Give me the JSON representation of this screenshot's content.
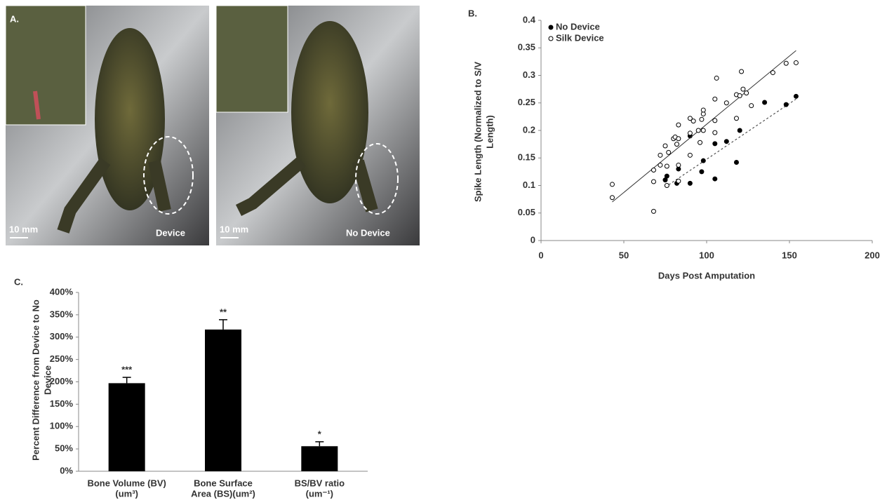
{
  "photo_panel": {
    "panel_label": "A.",
    "scale_left": "10 mm",
    "label_left": "Device",
    "scale_right": "10 mm",
    "label_right": "No Device"
  },
  "chart_data": [
    {
      "type": "scatter",
      "panel_label": "B.",
      "xlabel": "Days Post Amputation",
      "ylabel": [
        "Spike Length (Normalized to S/V",
        "Length)"
      ],
      "xlim": [
        0,
        200
      ],
      "xticks": [
        0,
        50,
        100,
        150,
        200
      ],
      "ylim": [
        0,
        0.4
      ],
      "yticks": [
        0,
        0.05,
        0.1,
        0.15,
        0.2,
        0.25,
        0.3,
        0.35,
        0.4
      ],
      "legend": "top-left",
      "series": [
        {
          "name": "No Device",
          "color": "#000000",
          "dash": true,
          "x": [
            75,
            76,
            82,
            83,
            90,
            90,
            97,
            98,
            105,
            105,
            112,
            118,
            120,
            135,
            148,
            154
          ],
          "values": [
            0.11,
            0.117,
            0.104,
            0.13,
            0.104,
            0.19,
            0.125,
            0.145,
            0.176,
            0.112,
            0.18,
            0.142,
            0.2,
            0.251,
            0.247,
            0.262
          ],
          "trend_x": [
            75,
            154
          ],
          "trend_y": [
            0.097,
            0.257
          ]
        },
        {
          "name": "Silk Device",
          "color": "#ffffff",
          "dash": false,
          "x": [
            43,
            43,
            68,
            68,
            68,
            72,
            72,
            75,
            76,
            76,
            77,
            80,
            81,
            82,
            83,
            83,
            83,
            83,
            90,
            90,
            90,
            92,
            95,
            96,
            97,
            98,
            98,
            98,
            105,
            105,
            105,
            106,
            112,
            118,
            118,
            120,
            121,
            122,
            124,
            127,
            140,
            148,
            154
          ],
          "values": [
            0.102,
            0.078,
            0.053,
            0.107,
            0.128,
            0.137,
            0.155,
            0.172,
            0.135,
            0.1,
            0.16,
            0.185,
            0.188,
            0.175,
            0.21,
            0.185,
            0.137,
            0.108,
            0.195,
            0.155,
            0.222,
            0.217,
            0.2,
            0.178,
            0.22,
            0.23,
            0.237,
            0.2,
            0.257,
            0.196,
            0.218,
            0.295,
            0.25,
            0.265,
            0.222,
            0.263,
            0.307,
            0.275,
            0.268,
            0.245,
            0.305,
            0.322,
            0.323
          ],
          "trend_x": [
            43,
            154
          ],
          "trend_y": [
            0.07,
            0.345
          ]
        }
      ]
    },
    {
      "type": "bar",
      "panel_label": "C.",
      "ylabel": [
        "Percent Difference from  Device to No",
        "Device"
      ],
      "categories": [
        [
          "Bone Volume (BV)",
          "(um³)"
        ],
        [
          "Bone Surface",
          "Area (BS)(um²)"
        ],
        [
          "BS/BV ratio",
          "(um⁻¹)"
        ]
      ],
      "values": [
        197,
        317,
        56
      ],
      "errors": [
        13,
        22,
        10
      ],
      "annotations": [
        "***",
        "**",
        "*"
      ],
      "color": "#000000",
      "ylim": [
        0,
        400
      ],
      "yticks": [
        {
          "value": 0,
          "label": "0%"
        },
        {
          "value": 50,
          "label": "50%"
        },
        {
          "value": 100,
          "label": "100%"
        },
        {
          "value": 150,
          "label": "150%"
        },
        {
          "value": 200,
          "label": "200%"
        },
        {
          "value": 250,
          "label": "250%"
        },
        {
          "value": 300,
          "label": "300%"
        },
        {
          "value": 350,
          "label": "350%"
        },
        {
          "value": 400,
          "label": "400%"
        }
      ]
    }
  ]
}
